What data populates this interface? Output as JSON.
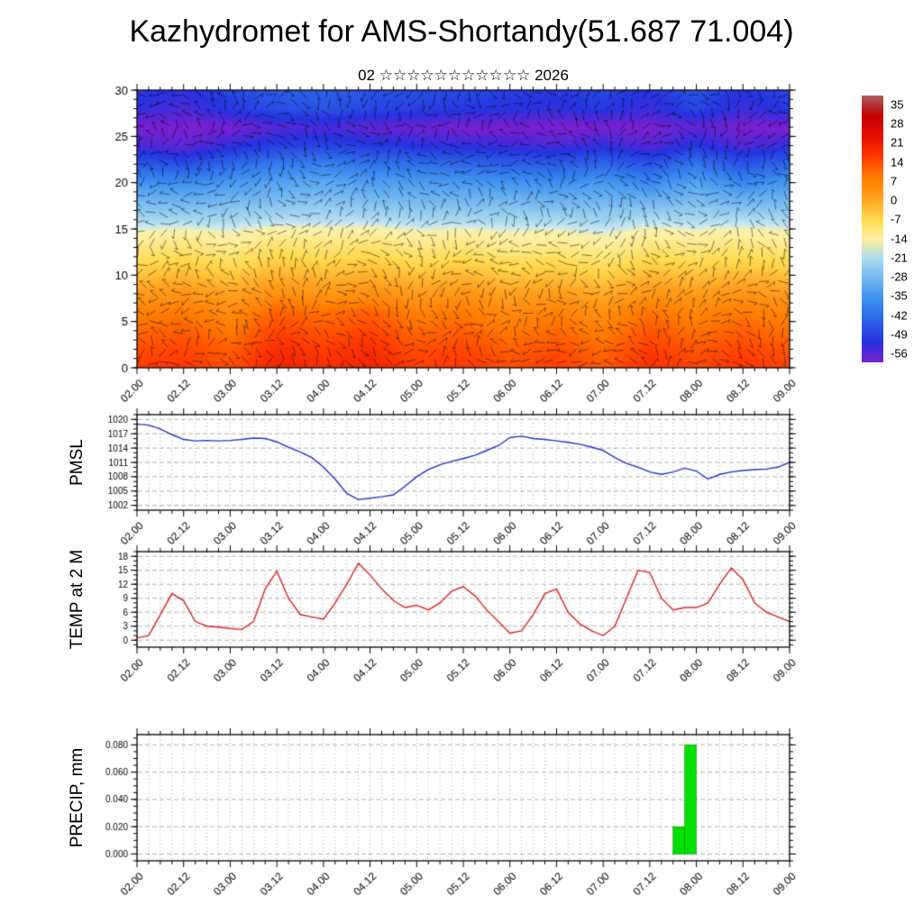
{
  "title": "Kazhydromet for AMS-Shortandy(51.687 71.004)",
  "subtitle": "02 ☆☆☆☆☆☆☆☆☆☆☆ 2026",
  "time_axis": {
    "labels": [
      "02.00",
      "02.12",
      "03.00",
      "03.12",
      "04.00",
      "04.12",
      "05.00",
      "05.12",
      "06.00",
      "06.12",
      "07.00",
      "07.12",
      "08.00",
      "08.12",
      "09.00"
    ],
    "n_points": 57,
    "points_per_label": 4
  },
  "colorbar": {
    "levels": [
      35,
      28,
      21,
      14,
      7,
      0,
      -7,
      -14,
      -21,
      -28,
      -35,
      -42,
      -49,
      -56
    ],
    "colors": [
      "#a86060",
      "#c40000",
      "#e60f00",
      "#ff3c00",
      "#ff7c00",
      "#ffa21f",
      "#ffd94d",
      "#fdf0a0",
      "#a8d8f0",
      "#6ab4f0",
      "#3c8ef0",
      "#2b62e8",
      "#2633e0",
      "#7a1fd0"
    ]
  },
  "chart_data": [
    {
      "type": "heatmap",
      "name": "temperature-height cross-section with wind barbs",
      "ylim": [
        0,
        30
      ],
      "yticks": [
        0,
        5,
        10,
        15,
        20,
        25,
        30
      ],
      "overlay": "wind-barbs",
      "heights": [
        0,
        2,
        4,
        6,
        8,
        10,
        12,
        14,
        16,
        18,
        20,
        22,
        24,
        26,
        28,
        30
      ],
      "grid": [
        [
          14,
          15,
          12,
          18,
          16,
          18,
          14,
          15,
          12,
          14,
          11,
          16,
          13,
          15,
          13
        ],
        [
          12,
          13,
          10,
          16,
          14,
          16,
          12,
          13,
          10,
          12,
          9,
          14,
          11,
          13,
          11
        ],
        [
          9,
          10,
          7,
          13,
          11,
          13,
          9,
          10,
          7,
          9,
          6,
          11,
          8,
          10,
          8
        ],
        [
          6,
          7,
          4,
          10,
          8,
          10,
          6,
          7,
          4,
          6,
          3,
          8,
          5,
          7,
          5
        ],
        [
          1,
          2,
          0,
          3,
          2,
          3,
          1,
          2,
          0,
          1,
          -1,
          2,
          1,
          2,
          1
        ],
        [
          -4,
          -3,
          -5,
          -2,
          -3,
          -2,
          -4,
          -3,
          -5,
          -4,
          -6,
          -3,
          -4,
          -3,
          -4
        ],
        [
          -9,
          -8,
          -10,
          -7,
          -8,
          -7,
          -9,
          -8,
          -10,
          -9,
          -11,
          -8,
          -9,
          -8,
          -9
        ],
        [
          -14,
          -13,
          -15,
          -12,
          -13,
          -12,
          -14,
          -13,
          -15,
          -14,
          -16,
          -13,
          -14,
          -13,
          -14
        ],
        [
          -21,
          -21,
          -21,
          -20,
          -20,
          -20,
          -21,
          -21,
          -21,
          -21,
          -22,
          -20,
          -21,
          -20,
          -21
        ],
        [
          -27,
          -28,
          -27,
          -26,
          -25,
          -26,
          -27,
          -27,
          -27,
          -28,
          -27,
          -28,
          -26,
          -28,
          -27
        ],
        [
          -34,
          -35,
          -33,
          -31,
          -30,
          -32,
          -32,
          -33,
          -34,
          -35,
          -33,
          -36,
          -31,
          -36,
          -33
        ],
        [
          -43,
          -45,
          -41,
          -38,
          -37,
          -39,
          -40,
          -41,
          -42,
          -43,
          -41,
          -44,
          -39,
          -44,
          -41
        ],
        [
          -52,
          -54,
          -50,
          -47,
          -46,
          -48,
          -49,
          -50,
          -51,
          -52,
          -50,
          -53,
          -48,
          -53,
          -50
        ],
        [
          -56,
          -56,
          -56,
          -53,
          -52,
          -54,
          -55,
          -56,
          -56,
          -56,
          -56,
          -56,
          -54,
          -56,
          -56
        ],
        [
          -50,
          -52,
          -48,
          -45,
          -44,
          -46,
          -47,
          -48,
          -49,
          -50,
          -48,
          -51,
          -46,
          -51,
          -48
        ],
        [
          -48,
          -50,
          -46,
          -43,
          -42,
          -44,
          -45,
          -46,
          -47,
          -48,
          -46,
          -49,
          -44,
          -49,
          -46
        ]
      ]
    },
    {
      "type": "line",
      "name": "PMSL",
      "color": "#2233cc",
      "ylim": [
        1001,
        1021
      ],
      "yticks": [
        1002,
        1005,
        1008,
        1011,
        1014,
        1017,
        1020
      ],
      "values": [
        1019,
        1018.8,
        1018,
        1016.8,
        1015.8,
        1015.5,
        1015.6,
        1015.5,
        1015.6,
        1015.8,
        1016.1,
        1016,
        1015.3,
        1014.2,
        1013.2,
        1012,
        1010,
        1007.5,
        1004.5,
        1003.2,
        1003.5,
        1003.8,
        1004.2,
        1006,
        1008,
        1009.5,
        1010.5,
        1011.2,
        1011.8,
        1012.5,
        1013.5,
        1014.5,
        1016.2,
        1016.5,
        1016,
        1015.8,
        1015.5,
        1015.2,
        1014.8,
        1014.2,
        1013.5,
        1012,
        1010.8,
        1010,
        1009,
        1008.5,
        1009,
        1009.8,
        1009.2,
        1007.5,
        1008.5,
        1009,
        1009.3,
        1009.5,
        1009.6,
        1010,
        1011
      ]
    },
    {
      "type": "line",
      "name": "TEMP at 2 M",
      "color": "#dd2020",
      "ylim": [
        -1.5,
        19
      ],
      "yticks": [
        0,
        3,
        6,
        9,
        12,
        15,
        18
      ],
      "values": [
        0.5,
        1,
        5.5,
        10,
        8.5,
        4,
        3,
        2.8,
        2.5,
        2.3,
        4,
        11,
        14.8,
        9,
        5.5,
        5,
        4.5,
        8,
        12,
        16.5,
        14,
        11,
        8.5,
        7,
        7.5,
        6.5,
        8,
        10.5,
        11.5,
        9.5,
        6.5,
        4,
        1.5,
        2,
        5.5,
        10,
        11,
        6,
        3.5,
        2,
        1,
        3,
        9,
        15,
        14.5,
        9,
        6.5,
        7,
        7,
        8,
        12,
        15.5,
        13,
        8,
        6,
        5,
        4
      ]
    },
    {
      "type": "bar",
      "name": "PRECIP, mm",
      "color": "#00e000",
      "ylim": [
        -0.005,
        0.0875
      ],
      "yticks": [
        0,
        0.02,
        0.04,
        0.06,
        0.08
      ],
      "ytick_labels": [
        "0.000",
        "0.020",
        "0.040",
        "0.060",
        "0.080"
      ],
      "values": [
        0,
        0,
        0,
        0,
        0,
        0,
        0,
        0,
        0,
        0,
        0,
        0,
        0,
        0,
        0,
        0,
        0,
        0,
        0,
        0,
        0,
        0,
        0,
        0,
        0,
        0,
        0,
        0,
        0,
        0,
        0,
        0,
        0,
        0,
        0,
        0,
        0,
        0,
        0,
        0,
        0,
        0,
        0,
        0,
        0,
        0,
        0.02,
        0.08,
        0,
        0,
        0,
        0,
        0,
        0,
        0,
        0,
        0
      ]
    }
  ]
}
